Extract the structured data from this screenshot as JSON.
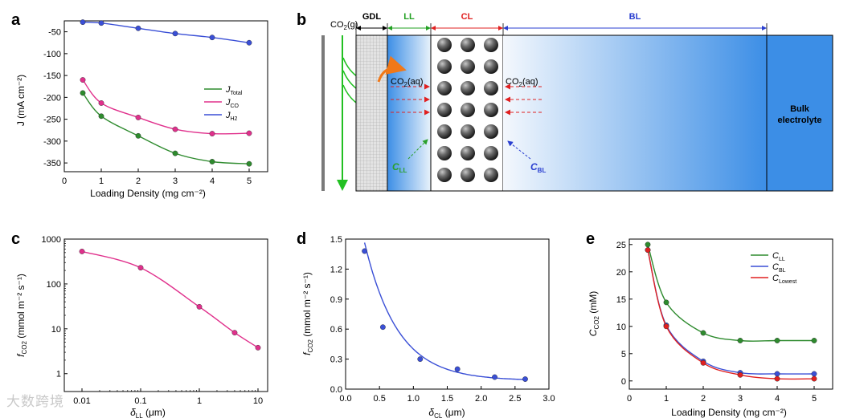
{
  "colors": {
    "green": "#2e8b2e",
    "pink": "#e0308c",
    "blue": "#3a4fd6",
    "red": "#e02020"
  },
  "watermark": "大数跨境",
  "chart_data": [
    {
      "panel": "a",
      "type": "line",
      "xlabel": "Loading Density (mg cm⁻²)",
      "ylabel": "J (mA cm⁻²)",
      "xlim": [
        0,
        5.5
      ],
      "ylim": [
        -370,
        -25
      ],
      "xticks": [
        0,
        1,
        2,
        3,
        4,
        5
      ],
      "yticks": [
        -50,
        -100,
        -150,
        -200,
        -250,
        -300,
        -350
      ],
      "x": [
        0.5,
        1,
        2,
        3,
        4,
        5
      ],
      "series": [
        {
          "name": "J_Total",
          "label": "J",
          "sub": "Total",
          "color": "#2e8b2e",
          "values": [
            -190,
            -243,
            -288,
            -328,
            -347,
            -352
          ]
        },
        {
          "name": "J_CO",
          "label": "J",
          "sub": "CO",
          "color": "#e0308c",
          "values": [
            -160,
            -213,
            -246,
            -273,
            -283,
            -282
          ]
        },
        {
          "name": "J_H2",
          "label": "J",
          "sub": "H2",
          "color": "#3a4fd6",
          "values": [
            -28,
            -30,
            -42,
            -54,
            -63,
            -75
          ]
        }
      ]
    },
    {
      "panel": "b",
      "type": "schematic",
      "zones": [
        "GDL",
        "LL",
        "CL",
        "BL"
      ],
      "labels": {
        "co2_gas": "CO₂(g)",
        "co2_aq_left": "CO₂(aq)",
        "co2_aq_right": "CO₂(aq)",
        "c_ll": "C",
        "c_ll_sub": "LL",
        "c_bl": "C",
        "c_bl_sub": "BL",
        "bulk_1": "Bulk",
        "bulk_2": "electrolyte"
      }
    },
    {
      "panel": "c",
      "type": "scatter",
      "scale": "log",
      "xlabel": "δ",
      "xlabel_sub": "LL",
      "xlabel_unit": " (μm)",
      "ylabel": "f",
      "ylabel_sub": "CO2",
      "ylabel_unit": " (mmol m⁻² s⁻¹)",
      "xticks": [
        "0.01",
        "0.1",
        "1",
        "10"
      ],
      "yticks": [
        "1000",
        "100",
        "10",
        "1"
      ],
      "x": [
        0.01,
        0.1,
        1,
        4,
        10
      ],
      "values": [
        530,
        230,
        31,
        8.2,
        3.8
      ],
      "color": "#e0308c"
    },
    {
      "panel": "d",
      "type": "scatter",
      "xlabel": "δ",
      "xlabel_sub": "CL",
      "xlabel_unit": " (μm)",
      "ylabel": "f",
      "ylabel_sub": "CO2",
      "ylabel_unit": " (mmol m⁻² s⁻¹)",
      "xlim": [
        0,
        3.0
      ],
      "ylim": [
        0,
        1.5
      ],
      "xticks": [
        "0.0",
        "0.5",
        "1.0",
        "1.5",
        "2.0",
        "2.5",
        "3.0"
      ],
      "yticks": [
        "0.0",
        "0.3",
        "0.6",
        "0.9",
        "1.2",
        "1.5"
      ],
      "x": [
        0.28,
        0.55,
        1.1,
        1.65,
        2.2,
        2.65
      ],
      "values": [
        1.38,
        0.62,
        0.3,
        0.2,
        0.12,
        0.1
      ],
      "color": "#3a4fd6"
    },
    {
      "panel": "e",
      "type": "line",
      "xlabel": "Loading Density (mg cm⁻²)",
      "ylabel": "C",
      "ylabel_sub": "CO2",
      "ylabel_unit": " (mM)",
      "xlim": [
        0,
        5.5
      ],
      "ylim": [
        -1.5,
        26
      ],
      "xticks": [
        "0",
        "1",
        "2",
        "3",
        "4",
        "5"
      ],
      "yticks": [
        "0",
        "5",
        "10",
        "15",
        "20",
        "25"
      ],
      "x": [
        0.5,
        1,
        2,
        3,
        4,
        5
      ],
      "series": [
        {
          "name": "C_LL",
          "label": "C",
          "sub": "LL",
          "color": "#2e8b2e",
          "values": [
            25,
            14.4,
            8.8,
            7.4,
            7.4,
            7.4
          ]
        },
        {
          "name": "C_BL",
          "label": "C",
          "sub": "BL",
          "color": "#3a4fd6",
          "values": [
            24,
            10.2,
            3.6,
            1.5,
            1.3,
            1.3
          ]
        },
        {
          "name": "C_Lowest",
          "label": "C",
          "sub": "Lowest",
          "color": "#e02020",
          "values": [
            24,
            10,
            3.3,
            1.1,
            0.4,
            0.4
          ]
        }
      ]
    }
  ]
}
